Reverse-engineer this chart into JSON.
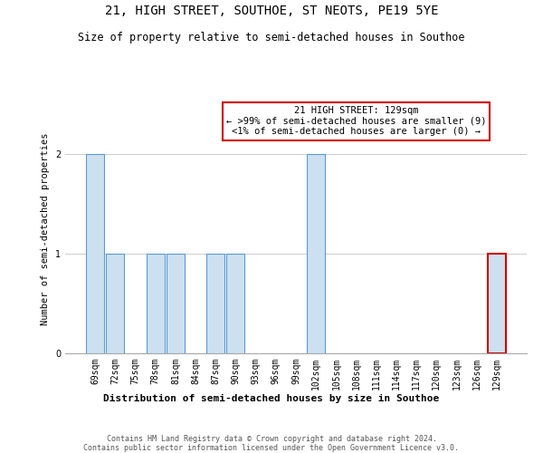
{
  "title": "21, HIGH STREET, SOUTHOE, ST NEOTS, PE19 5YE",
  "subtitle": "Size of property relative to semi-detached houses in Southoe",
  "xlabel": "Distribution of semi-detached houses by size in Southoe",
  "ylabel": "Number of semi-detached properties",
  "categories": [
    "69sqm",
    "72sqm",
    "75sqm",
    "78sqm",
    "81sqm",
    "84sqm",
    "87sqm",
    "90sqm",
    "93sqm",
    "96sqm",
    "99sqm",
    "102sqm",
    "105sqm",
    "108sqm",
    "111sqm",
    "114sqm",
    "117sqm",
    "120sqm",
    "123sqm",
    "126sqm",
    "129sqm"
  ],
  "values": [
    2,
    1,
    0,
    1,
    1,
    0,
    1,
    1,
    0,
    0,
    0,
    2,
    0,
    0,
    0,
    0,
    0,
    0,
    0,
    0,
    1
  ],
  "highlight_index": 20,
  "bar_color": "#cce0f0",
  "bar_edge_color": "#5b9bd5",
  "highlight_bar_edge_color": "#cc0000",
  "annotation_box_edge_color": "#cc0000",
  "annotation_line1": "21 HIGH STREET: 129sqm",
  "annotation_line2": "← >99% of semi-detached houses are smaller (9)",
  "annotation_line3": "<1% of semi-detached houses are larger (0) →",
  "ylim": [
    0,
    2.5
  ],
  "yticks": [
    0,
    1,
    2
  ],
  "footer_line1": "Contains HM Land Registry data © Crown copyright and database right 2024.",
  "footer_line2": "Contains public sector information licensed under the Open Government Licence v3.0.",
  "background_color": "#ffffff",
  "title_fontsize": 10,
  "subtitle_fontsize": 8.5,
  "xlabel_fontsize": 8,
  "ylabel_fontsize": 7.5,
  "tick_fontsize": 7,
  "annotation_fontsize": 7.5,
  "footer_fontsize": 6
}
